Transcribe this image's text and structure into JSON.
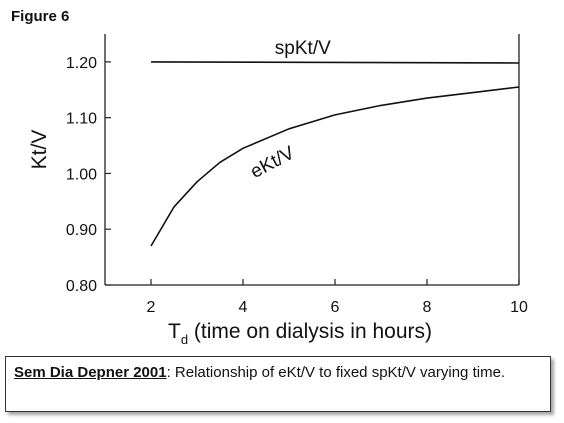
{
  "figure_label": "Figure 6",
  "caption": {
    "source": "Sem Dia Depner 2001",
    "text": ": Relationship of eKt/V to fixed spKt/V varying time."
  },
  "chart_data": {
    "type": "line",
    "title": "",
    "xlabel_symbol": "T",
    "xlabel_subscript": "d",
    "xlabel_text": "(time on dialysis in hours)",
    "ylabel": "Kt/V",
    "xlim": [
      1,
      10
    ],
    "ylim": [
      0.8,
      1.25
    ],
    "x_ticks": [
      2,
      4,
      6,
      8,
      10
    ],
    "x_tick_labels": [
      "2",
      "4",
      "6",
      "8",
      "10"
    ],
    "y_ticks": [
      0.8,
      0.9,
      1.0,
      1.1,
      1.2
    ],
    "y_tick_labels": [
      "0.80",
      "0.90",
      "1.00",
      "1.10",
      "1.20"
    ],
    "grid": false,
    "series": [
      {
        "name": "spKt/V",
        "x": [
          2,
          10
        ],
        "y": [
          1.2,
          1.198
        ]
      },
      {
        "name": "eKt/V",
        "x": [
          2,
          2.5,
          3,
          3.5,
          4,
          5,
          6,
          7,
          8,
          9,
          10
        ],
        "y": [
          0.87,
          0.94,
          0.985,
          1.02,
          1.045,
          1.08,
          1.105,
          1.122,
          1.135,
          1.145,
          1.155
        ]
      }
    ]
  }
}
